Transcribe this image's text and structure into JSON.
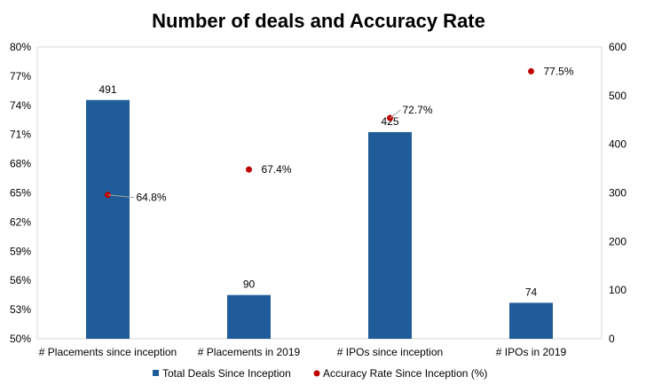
{
  "chart_data": {
    "type": "bar",
    "title": "Number of deals and Accuracy Rate",
    "categories": [
      "# Placements since inception",
      "# Placements in 2019",
      "# IPOs since inception",
      "# IPOs in 2019"
    ],
    "series": [
      {
        "name": "Total Deals Since Inception",
        "type": "bar",
        "axis": "right",
        "values": [
          491,
          90,
          425,
          74
        ],
        "labels": [
          "491",
          "90",
          "425",
          "74"
        ],
        "color": "#1F5C99"
      },
      {
        "name": "Accuracy Rate Since Inception (%)",
        "type": "scatter",
        "axis": "left",
        "values": [
          64.8,
          67.4,
          72.7,
          77.5
        ],
        "labels": [
          "64.8%",
          "67.4%",
          "72.7%",
          "77.5%"
        ],
        "color": "#C00000"
      }
    ],
    "y_left": {
      "ylim": [
        50,
        80
      ],
      "ticks": [
        "50%",
        "53%",
        "56%",
        "59%",
        "62%",
        "65%",
        "68%",
        "71%",
        "74%",
        "77%",
        "80%"
      ]
    },
    "y_right": {
      "ylim": [
        0,
        600
      ],
      "ticks": [
        "0",
        "100",
        "200",
        "300",
        "400",
        "500",
        "600"
      ]
    },
    "grid": false,
    "legend": "bottom"
  }
}
